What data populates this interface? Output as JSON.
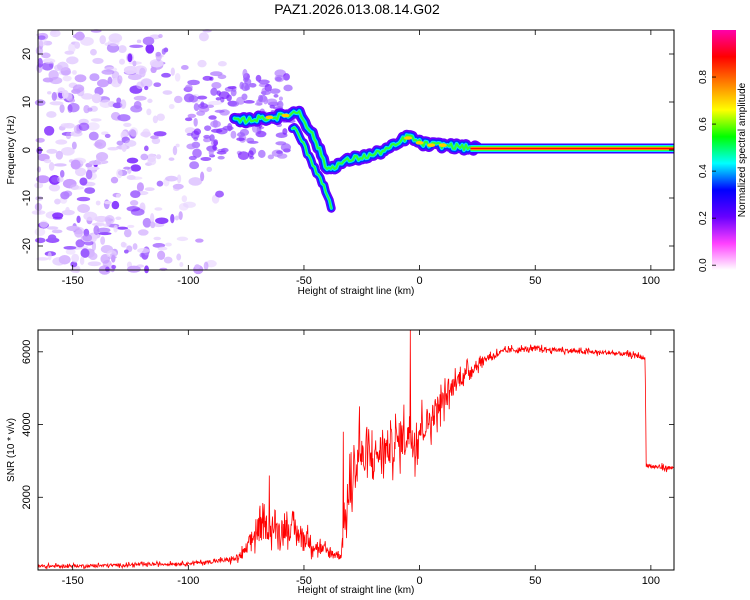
{
  "figure": {
    "title": "PAZ1.2026.013.08.14.G02"
  },
  "chart_data": [
    {
      "type": "heatmap",
      "title": "PAZ1.2026.013.08.14.G02",
      "xlabel": "Height of straight line (km)",
      "ylabel": "Frequency (Hz)",
      "xlim": [
        -165,
        110
      ],
      "ylim": [
        -25,
        25
      ],
      "xticks": [
        -150,
        -100,
        -50,
        0,
        50,
        100
      ],
      "yticks": [
        -20,
        -10,
        0,
        10,
        20
      ],
      "colorbar": {
        "label": "Normalized spectral amplitude",
        "range": [
          0,
          1
        ],
        "ticks": [
          0.0,
          0.2,
          0.4,
          0.6,
          0.8
        ],
        "colormap": [
          "#ffffff",
          "#ff40ff",
          "#6600ff",
          "#0000ff",
          "#00ffff",
          "#00ff00",
          "#ffff00",
          "#ff8000",
          "#ff0000",
          "#ff00aa"
        ]
      },
      "ridge": {
        "description_points_x": [
          -80,
          -70,
          -60,
          -52,
          -45,
          -40,
          -35,
          -30,
          -20,
          -10,
          -5,
          0,
          5,
          10,
          15,
          20,
          25,
          110
        ],
        "description_points_y": [
          6,
          6.5,
          7,
          8,
          2,
          -4,
          -3,
          -2,
          -1,
          1,
          3,
          1.5,
          1,
          1,
          0.8,
          0.5,
          0.3,
          0.3
        ],
        "branch_x": [
          -55,
          -50,
          -45,
          -40,
          -38
        ],
        "branch_y": [
          5,
          1,
          -4,
          -9,
          -12
        ]
      },
      "scatter_region": {
        "x_from": -165,
        "x_to": -80,
        "y_from": -25,
        "y_to": 25
      }
    },
    {
      "type": "line",
      "xlabel": "Height of straight line (km)",
      "ylabel": "SNR (10 * v/v)",
      "xlim": [
        -165,
        110
      ],
      "ylim": [
        0,
        6600
      ],
      "xticks": [
        -150,
        -100,
        -50,
        0,
        50,
        100
      ],
      "yticks": [
        2000,
        4000,
        6000
      ],
      "color": "#ff0000",
      "series": [
        {
          "name": "SNR",
          "x": [
            -165,
            -140,
            -120,
            -100,
            -90,
            -80,
            -76,
            -74,
            -72,
            -70,
            -66,
            -62,
            -58,
            -54,
            -50,
            -46,
            -42,
            -38,
            -34,
            -32,
            -30,
            -28,
            -26,
            -24,
            -20,
            -16,
            -12,
            -8,
            -6,
            -4,
            -2,
            0,
            4,
            8,
            12,
            16,
            20,
            24,
            28,
            32,
            36,
            40,
            50,
            60,
            70,
            80,
            90,
            96,
            97.5,
            98,
            100,
            105,
            110
          ],
          "mean": [
            100,
            120,
            150,
            180,
            230,
            300,
            450,
            700,
            900,
            1100,
            1200,
            1100,
            1150,
            1050,
            900,
            700,
            550,
            450,
            400,
            1500,
            2200,
            2800,
            3200,
            3000,
            3100,
            3300,
            3400,
            3600,
            3700,
            3800,
            3500,
            3900,
            4100,
            4500,
            4800,
            5200,
            5400,
            5600,
            5800,
            5900,
            6000,
            6050,
            6080,
            6050,
            6000,
            5980,
            5930,
            5870,
            5800,
            2900,
            2850,
            2820,
            2800
          ],
          "noise": [
            80,
            80,
            80,
            80,
            100,
            150,
            300,
            400,
            600,
            700,
            700,
            600,
            600,
            600,
            500,
            450,
            350,
            300,
            250,
            900,
            1200,
            1200,
            1200,
            1100,
            1000,
            1000,
            1000,
            1000,
            1100,
            1100,
            1100,
            900,
            800,
            700,
            600,
            500,
            400,
            300,
            200,
            200,
            150,
            150,
            130,
            120,
            120,
            120,
            120,
            120,
            120,
            120,
            120,
            120,
            120
          ]
        }
      ],
      "spikes": [
        {
          "x": -4,
          "y": 6600
        },
        {
          "x": -26,
          "y": 4500
        },
        {
          "x": -33,
          "y": 3800
        },
        {
          "x": -65,
          "y": 2600
        }
      ]
    }
  ]
}
